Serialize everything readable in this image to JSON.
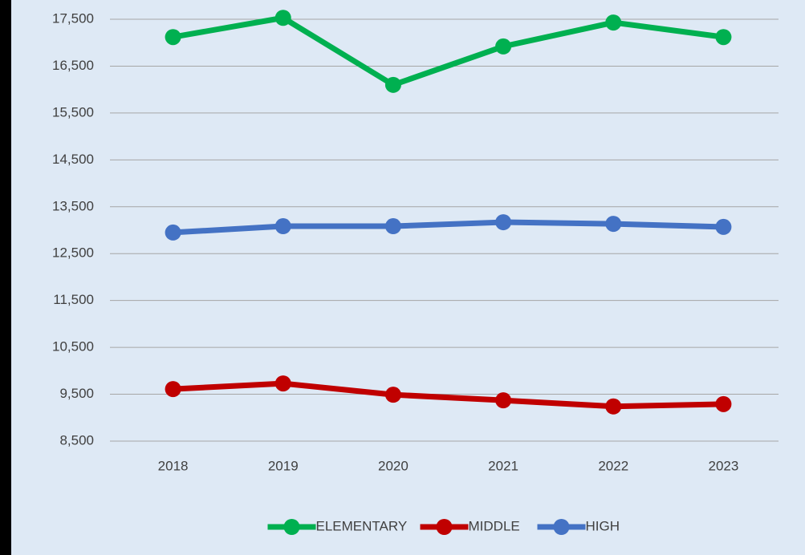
{
  "chart_data": {
    "type": "line",
    "categories": [
      "2018",
      "2019",
      "2020",
      "2021",
      "2022",
      "2023"
    ],
    "series": [
      {
        "name": "ELEMENTARY",
        "color": "#00b050",
        "values": [
          17120,
          17530,
          16100,
          16920,
          17430,
          17120
        ]
      },
      {
        "name": "MIDDLE",
        "color": "#c00000",
        "values": [
          9610,
          9730,
          9490,
          9370,
          9240,
          9290
        ]
      },
      {
        "name": "HIGH",
        "color": "#4472c4",
        "values": [
          12950,
          13085,
          13085,
          13170,
          13135,
          13070
        ]
      }
    ],
    "ylim": [
      8500,
      17500
    ],
    "yticks": [
      {
        "value": 8500,
        "label": "8,500"
      },
      {
        "value": 9500,
        "label": "9,500"
      },
      {
        "value": 10500,
        "label": "10,500"
      },
      {
        "value": 11500,
        "label": "11,500"
      },
      {
        "value": 12500,
        "label": "12,500"
      },
      {
        "value": 13500,
        "label": "13,500"
      },
      {
        "value": 14500,
        "label": "14,500"
      },
      {
        "value": 15500,
        "label": "15,500"
      },
      {
        "value": 16500,
        "label": "16,500"
      },
      {
        "value": 17500,
        "label": "17,500"
      }
    ],
    "grid": true,
    "legend": "bottom"
  }
}
